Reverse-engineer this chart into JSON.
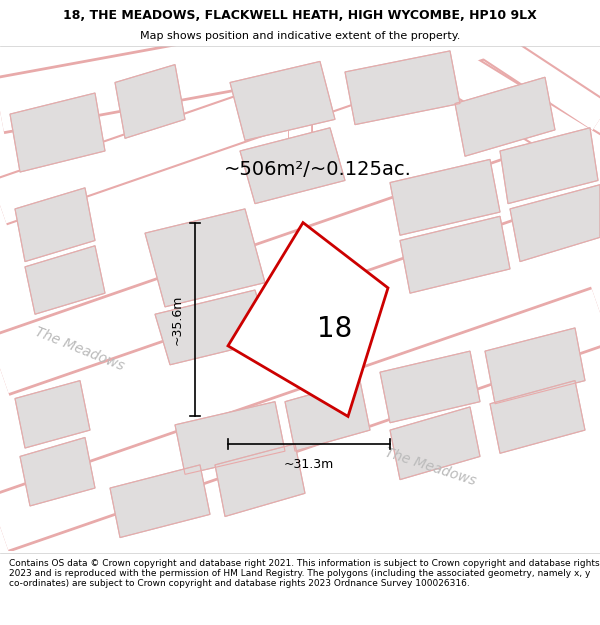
{
  "title_line1": "18, THE MEADOWS, FLACKWELL HEATH, HIGH WYCOMBE, HP10 9LX",
  "title_line2": "Map shows position and indicative extent of the property.",
  "area_label": "~506m²/~0.125ac.",
  "number_label": "18",
  "dim_height": "~35.6m",
  "dim_width": "~31.3m",
  "street_label1": "The Meadows",
  "street_label2": "The Meadows",
  "footer": "Contains OS data © Crown copyright and database right 2021. This information is subject to Crown copyright and database rights 2023 and is reproduced with the permission of HM Land Registry. The polygons (including the associated geometry, namely x, y co-ordinates) are subject to Crown copyright and database rights 2023 Ordnance Survey 100026316.",
  "bg_color": "#f2f0f0",
  "road_color": "#ffffff",
  "road_border_color": "#e8aaaa",
  "building_color": "#e0dddd",
  "building_edge_color": "#c8c4c4",
  "plot_fill_color": "#ffffff",
  "plot_edge_color": "#cc0000",
  "title_fontsize": 9,
  "subtitle_fontsize": 8,
  "footer_fontsize": 6.5,
  "area_fontsize": 14,
  "number_fontsize": 20,
  "dim_fontsize": 9,
  "street_fontsize": 10
}
